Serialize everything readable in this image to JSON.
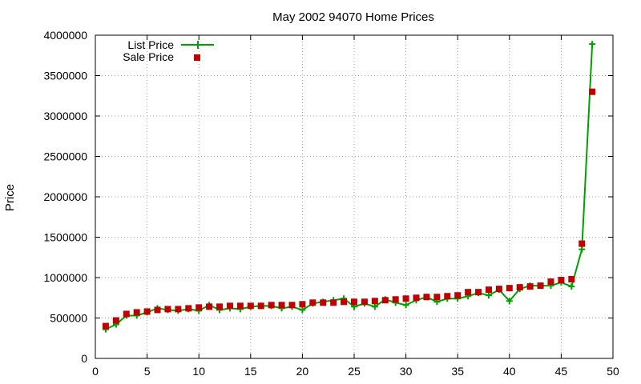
{
  "chart_data": {
    "type": "line",
    "title": "May 2002 94070 Home Prices",
    "xlabel": "",
    "ylabel": "Price",
    "xlim": [
      0,
      50
    ],
    "ylim": [
      0,
      4000000
    ],
    "xticks": [
      0,
      5,
      10,
      15,
      20,
      25,
      30,
      35,
      40,
      45,
      50
    ],
    "yticks": [
      0,
      500000,
      1000000,
      1500000,
      2000000,
      2500000,
      3000000,
      3500000,
      4000000
    ],
    "grid": true,
    "legend_position": "top-left",
    "x": [
      1,
      2,
      3,
      4,
      5,
      6,
      7,
      8,
      9,
      10,
      11,
      12,
      13,
      14,
      15,
      16,
      17,
      18,
      19,
      20,
      21,
      22,
      23,
      24,
      25,
      26,
      27,
      28,
      29,
      30,
      31,
      32,
      33,
      34,
      35,
      36,
      37,
      38,
      39,
      40,
      41,
      42,
      43,
      44,
      45,
      46,
      47,
      48
    ],
    "series": [
      {
        "name": "List Price",
        "style": "line+plus",
        "color": "#00a000",
        "values": [
          360000,
          420000,
          530000,
          530000,
          570000,
          620000,
          600000,
          590000,
          610000,
          590000,
          660000,
          600000,
          620000,
          610000,
          640000,
          650000,
          650000,
          620000,
          640000,
          600000,
          680000,
          700000,
          720000,
          740000,
          640000,
          680000,
          640000,
          730000,
          690000,
          660000,
          720000,
          760000,
          700000,
          740000,
          740000,
          770000,
          810000,
          780000,
          850000,
          710000,
          860000,
          900000,
          900000,
          900000,
          940000,
          890000,
          1350000,
          3890000
        ]
      },
      {
        "name": "Sale Price",
        "style": "squares",
        "color": "#c00000",
        "values": [
          400000,
          470000,
          550000,
          570000,
          580000,
          600000,
          610000,
          610000,
          620000,
          630000,
          640000,
          640000,
          650000,
          650000,
          650000,
          650000,
          660000,
          660000,
          660000,
          670000,
          690000,
          690000,
          690000,
          700000,
          700000,
          700000,
          710000,
          720000,
          730000,
          740000,
          750000,
          760000,
          760000,
          770000,
          780000,
          820000,
          820000,
          850000,
          860000,
          870000,
          880000,
          890000,
          900000,
          950000,
          970000,
          980000,
          1420000,
          3300000
        ]
      }
    ]
  }
}
